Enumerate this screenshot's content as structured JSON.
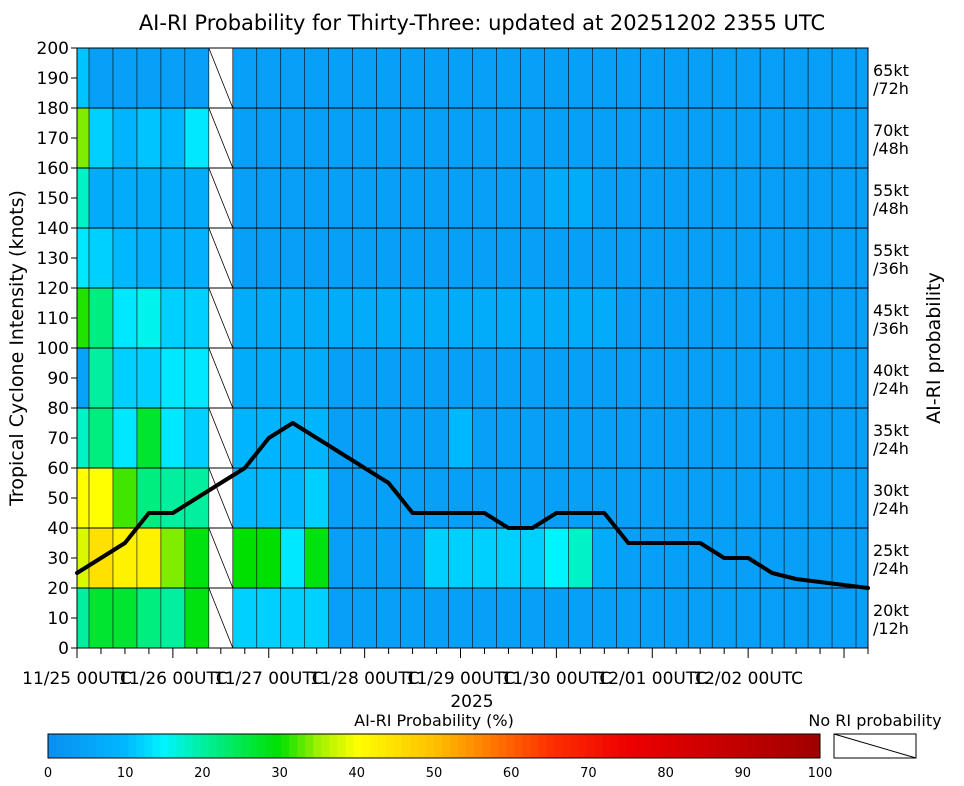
{
  "chart_data": {
    "type": "heatmap",
    "title": "AI-RI Probability for Thirty-Three: updated at 20251202 2355 UTC",
    "ylabel": "Tropical Cyclone Intensity (knots)",
    "right_label": "AI-RI probability",
    "xlabel": "2025",
    "ylim": [
      0,
      200
    ],
    "yticks": [
      0,
      10,
      20,
      30,
      40,
      50,
      60,
      70,
      80,
      90,
      100,
      110,
      120,
      130,
      140,
      150,
      160,
      170,
      180,
      190,
      200
    ],
    "time_start": "2025-11-25 00UTC",
    "time_step_hours": 6,
    "n_times": 34,
    "x_tick_labels": [
      "11/25 00UTC",
      "11/26 00UTC",
      "11/27 00UTC",
      "11/28 00UTC",
      "11/29 00UTC",
      "11/30 00UTC",
      "12/01 00UTC",
      "12/02 00UTC"
    ],
    "row_labels": [
      {
        "name": "20kt /12h",
        "line1": "20kt",
        "line2": "/12h",
        "range": [
          0,
          20
        ]
      },
      {
        "name": "25kt /24h",
        "line1": "25kt",
        "line2": "/24h",
        "range": [
          20,
          40
        ]
      },
      {
        "name": "30kt /24h",
        "line1": "30kt",
        "line2": "/24h",
        "range": [
          40,
          60
        ]
      },
      {
        "name": "35kt /24h",
        "line1": "35kt",
        "line2": "/24h",
        "range": [
          60,
          80
        ]
      },
      {
        "name": "40kt /24h",
        "line1": "40kt",
        "line2": "/24h",
        "range": [
          80,
          100
        ]
      },
      {
        "name": "45kt /36h",
        "line1": "45kt",
        "line2": "/36h",
        "range": [
          100,
          120
        ]
      },
      {
        "name": "55kt /36h",
        "line1": "55kt",
        "line2": "/36h",
        "range": [
          120,
          140
        ]
      },
      {
        "name": "55kt /48h",
        "line1": "55kt",
        "line2": "/48h",
        "range": [
          140,
          160
        ]
      },
      {
        "name": "70kt /48h",
        "line1": "70kt",
        "line2": "/48h",
        "range": [
          160,
          180
        ]
      },
      {
        "name": "65kt /72h",
        "line1": "65kt",
        "line2": "/72h",
        "range": [
          180,
          200
        ]
      }
    ],
    "probabilities_pct": [
      [
        20,
        27,
        27,
        22,
        20,
        29,
        null,
        12,
        12,
        12,
        12,
        4,
        4,
        4,
        4,
        4,
        4,
        4,
        4,
        4,
        4,
        4,
        4,
        4,
        4,
        4,
        4,
        4,
        4,
        4,
        4,
        4,
        4,
        4
      ],
      [
        38,
        45,
        42,
        42,
        34,
        29,
        null,
        30,
        30,
        14,
        29,
        4,
        4,
        4,
        4,
        12,
        12,
        12,
        12,
        12,
        15,
        18,
        7,
        4,
        4,
        4,
        4,
        4,
        4,
        4,
        4,
        4,
        4,
        4
      ],
      [
        40,
        40,
        32,
        22,
        20,
        20,
        null,
        10,
        10,
        10,
        12,
        4,
        4,
        4,
        4,
        4,
        4,
        4,
        4,
        4,
        4,
        4,
        4,
        4,
        4,
        4,
        4,
        4,
        4,
        4,
        4,
        4,
        4,
        4
      ],
      [
        18,
        22,
        14,
        27,
        14,
        12,
        null,
        9,
        9,
        9,
        9,
        4,
        4,
        4,
        4,
        4,
        10,
        4,
        4,
        4,
        4,
        4,
        4,
        4,
        4,
        4,
        4,
        4,
        4,
        4,
        4,
        4,
        4,
        4
      ],
      [
        5,
        20,
        12,
        12,
        14,
        14,
        null,
        7,
        7,
        7,
        7,
        4,
        4,
        4,
        4,
        4,
        4,
        4,
        4,
        4,
        4,
        4,
        4,
        4,
        4,
        4,
        4,
        4,
        4,
        4,
        4,
        4,
        4,
        4
      ],
      [
        31,
        22,
        14,
        16,
        12,
        12,
        null,
        7,
        7,
        7,
        7,
        7,
        7,
        7,
        7,
        7,
        7,
        7,
        7,
        7,
        7,
        7,
        7,
        4,
        4,
        4,
        4,
        4,
        4,
        4,
        4,
        4,
        4,
        4
      ],
      [
        14,
        12,
        10,
        8,
        8,
        8,
        null,
        4,
        4,
        4,
        4,
        4,
        4,
        4,
        4,
        4,
        4,
        4,
        4,
        4,
        4,
        4,
        4,
        4,
        4,
        4,
        4,
        4,
        4,
        4,
        4,
        4,
        4,
        4
      ],
      [
        18,
        7,
        7,
        7,
        7,
        7,
        null,
        4,
        4,
        4,
        4,
        4,
        4,
        4,
        4,
        4,
        4,
        4,
        4,
        4,
        7,
        7,
        4,
        4,
        4,
        4,
        4,
        4,
        4,
        4,
        4,
        4,
        4,
        4
      ],
      [
        34,
        12,
        9,
        11,
        10,
        14,
        null,
        4,
        4,
        4,
        4,
        4,
        4,
        4,
        4,
        4,
        4,
        4,
        4,
        4,
        4,
        4,
        4,
        4,
        4,
        4,
        4,
        4,
        4,
        4,
        4,
        4,
        4,
        4
      ],
      [
        11,
        4,
        4,
        4,
        4,
        4,
        null,
        4,
        4,
        4,
        4,
        4,
        4,
        4,
        4,
        4,
        4,
        4,
        4,
        4,
        4,
        4,
        4,
        4,
        4,
        4,
        4,
        4,
        4,
        4,
        4,
        4,
        4,
        4
      ]
    ],
    "intensity_series": {
      "values": [
        25,
        30,
        35,
        45,
        45,
        50,
        55,
        60,
        70,
        75,
        70,
        65,
        60,
        55,
        45,
        45,
        45,
        45,
        40,
        40,
        45,
        45,
        45,
        35,
        35,
        35,
        35,
        30,
        30,
        25,
        23,
        22,
        21,
        20
      ],
      "color": "#000000"
    },
    "colorbar": {
      "label": "AI-RI Probability (%)",
      "ticks": [
        0,
        10,
        20,
        30,
        40,
        50,
        60,
        70,
        80,
        90,
        100
      ],
      "no_ri_label": "No RI probability"
    },
    "grid": true
  }
}
